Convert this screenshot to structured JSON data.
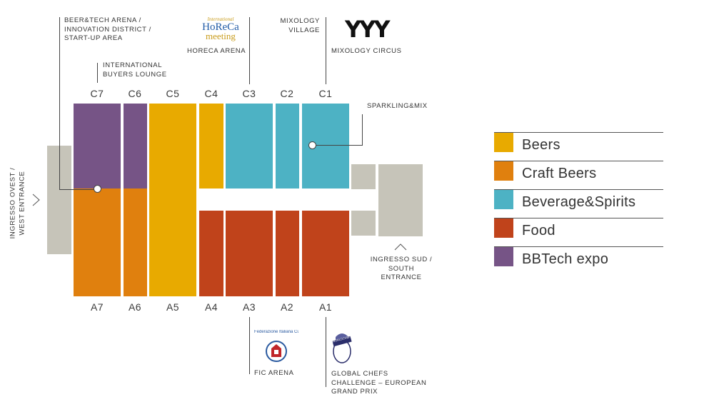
{
  "colors": {
    "beers": "#e8aa00",
    "craft_beers": "#e0800e",
    "beverage_spirits": "#4db2c4",
    "food": "#c0431b",
    "bbtech": "#765486",
    "neutral": "#c6c4b9"
  },
  "halls_top": [
    "C7",
    "C6",
    "C5",
    "C4",
    "C3",
    "C2",
    "C1"
  ],
  "halls_bottom": [
    "A7",
    "A6",
    "A5",
    "A4",
    "A3",
    "A2",
    "A1"
  ],
  "annotations": {
    "beer_tech": "BEER&TECH ARENA / INNOVATION DISTRICT / START-UP AREA",
    "buyers_lounge": "INTERNATIONAL BUYERS LOUNGE",
    "horeca_arena": "HORECA ARENA",
    "mixology_village": "MIXOLOGY VILLAGE",
    "mixology_circus": "MIXOLOGY CIRCUS",
    "sparkling_mix": "SPARKLING&MIX",
    "west_entrance": "INGRESSO OVEST / WEST ENTRANCE",
    "south_entrance": "INGRESSO SUD / SOUTH ENTRANCE",
    "fic_arena": "FIC ARENA",
    "chefs_challenge": "GLOBAL CHEFS CHALLENGE – EUROPEAN GRAND PRIX"
  },
  "logos": {
    "horeca_meeting": {
      "line1": "International",
      "line2": "HoReCa",
      "line3": "meeting"
    },
    "mixology": "YYY",
    "fic": "Federazione Italiana Cuochi",
    "wacs": "WORLDCHEFS"
  },
  "legend": [
    {
      "label": "Beers",
      "color": "#e8aa00"
    },
    {
      "label": "Craft Beers",
      "color": "#e0800e"
    },
    {
      "label": "Beverage&Spirits",
      "color": "#4db2c4"
    },
    {
      "label": "Food",
      "color": "#c0431b"
    },
    {
      "label": "BBTech expo",
      "color": "#765486"
    }
  ]
}
